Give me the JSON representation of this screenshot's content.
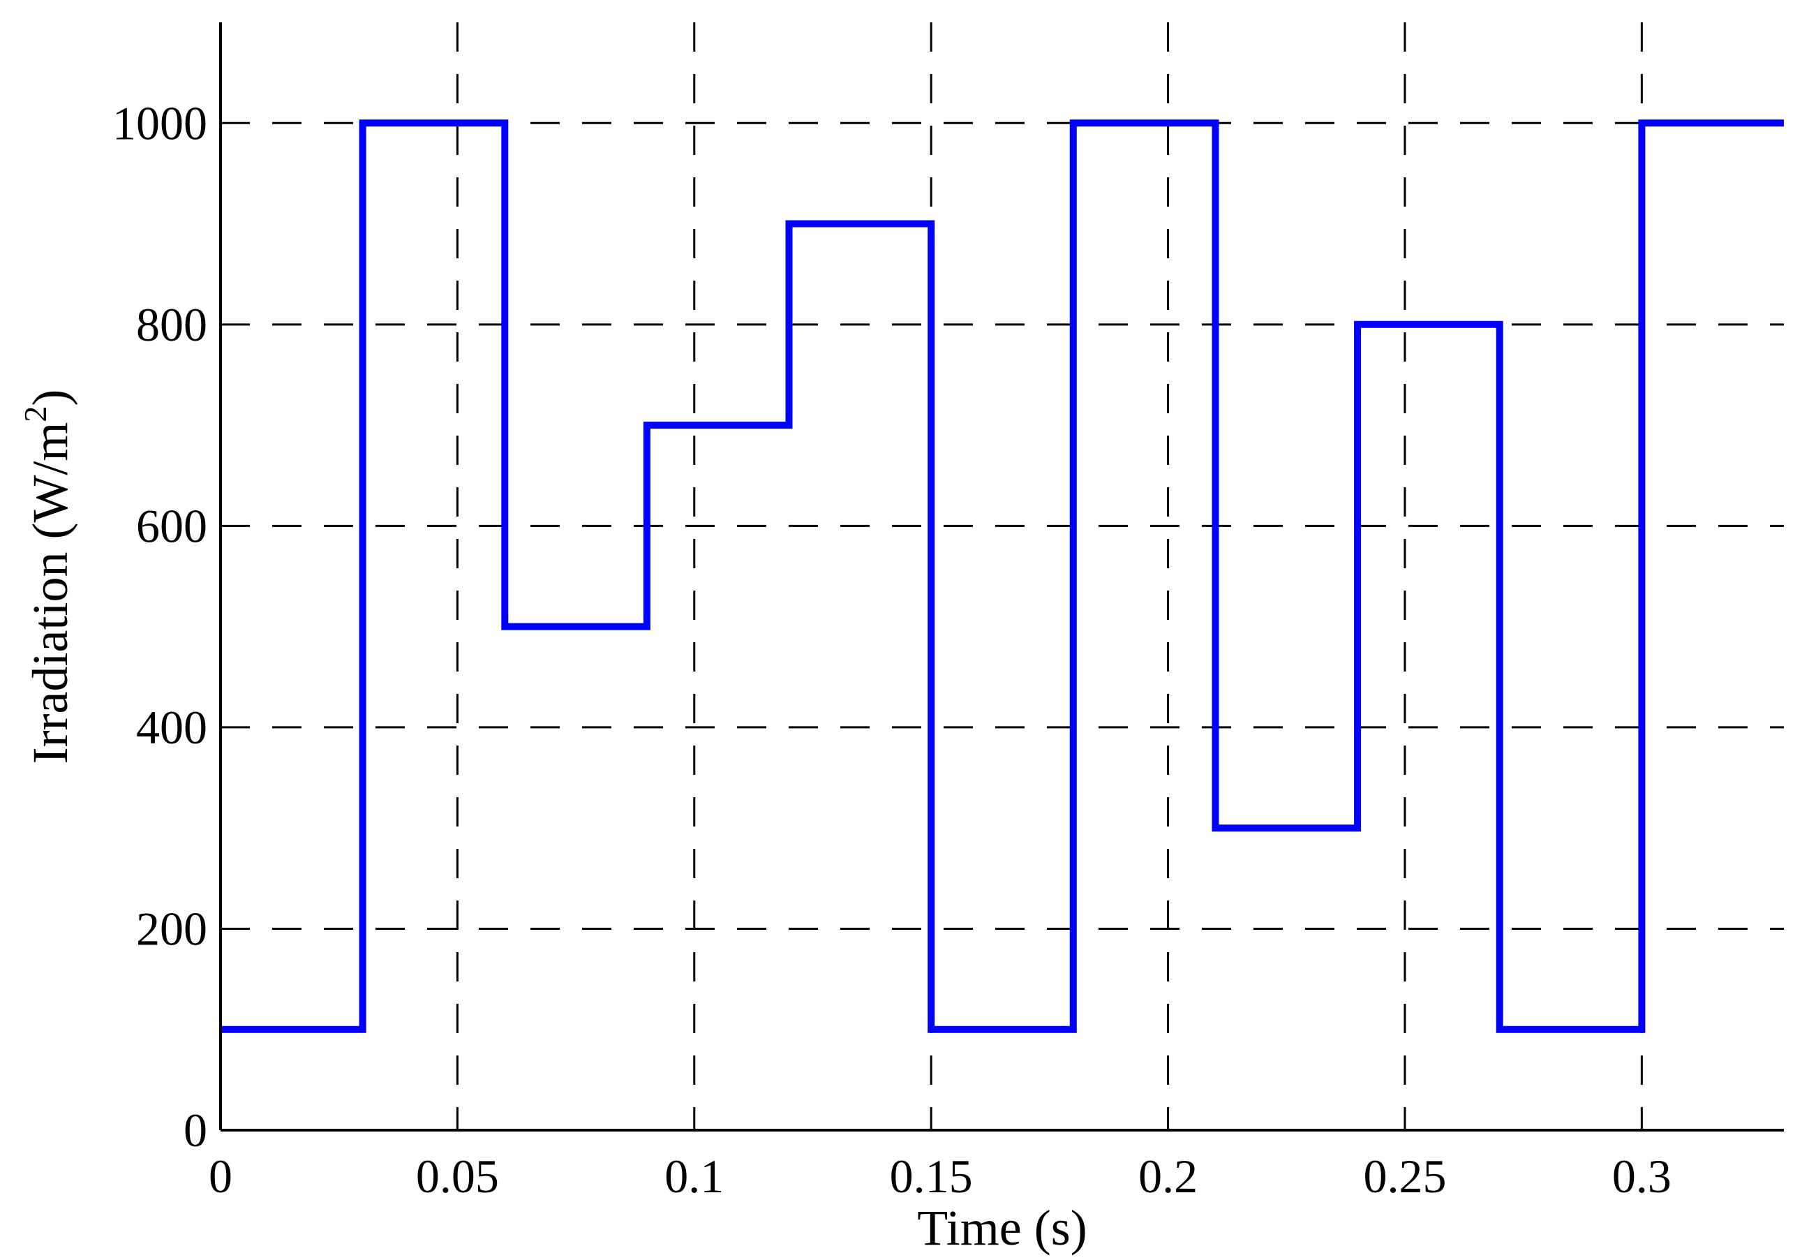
{
  "chart_data": {
    "type": "line",
    "step": true,
    "title": "",
    "xlabel": "Time (s)",
    "ylabel_main": "Irradiation (W/m",
    "ylabel_sup": "2",
    "ylabel_close": ")",
    "xlim": [
      0,
      0.33
    ],
    "ylim": [
      0,
      1100
    ],
    "xticks": [
      0,
      0.05,
      0.1,
      0.15,
      0.2,
      0.25,
      0.3
    ],
    "xtick_labels": [
      "0",
      "0.05",
      "0.1",
      "0.15",
      "0.2",
      "0.25",
      "0.3"
    ],
    "yticks": [
      0,
      200,
      400,
      600,
      800,
      1000
    ],
    "ytick_labels": [
      "0",
      "200",
      "400",
      "600",
      "800",
      "1000"
    ],
    "grid": true,
    "series": [
      {
        "color": "#0000ff",
        "x": [
          0,
          0.03,
          0.03,
          0.06,
          0.06,
          0.09,
          0.09,
          0.12,
          0.12,
          0.15,
          0.15,
          0.18,
          0.18,
          0.21,
          0.21,
          0.24,
          0.24,
          0.27,
          0.27,
          0.3,
          0.3,
          0.33
        ],
        "y": [
          100,
          100,
          1000,
          1000,
          500,
          500,
          700,
          700,
          900,
          900,
          100,
          100,
          1000,
          1000,
          300,
          300,
          800,
          800,
          100,
          100,
          1000,
          1000
        ]
      }
    ]
  }
}
